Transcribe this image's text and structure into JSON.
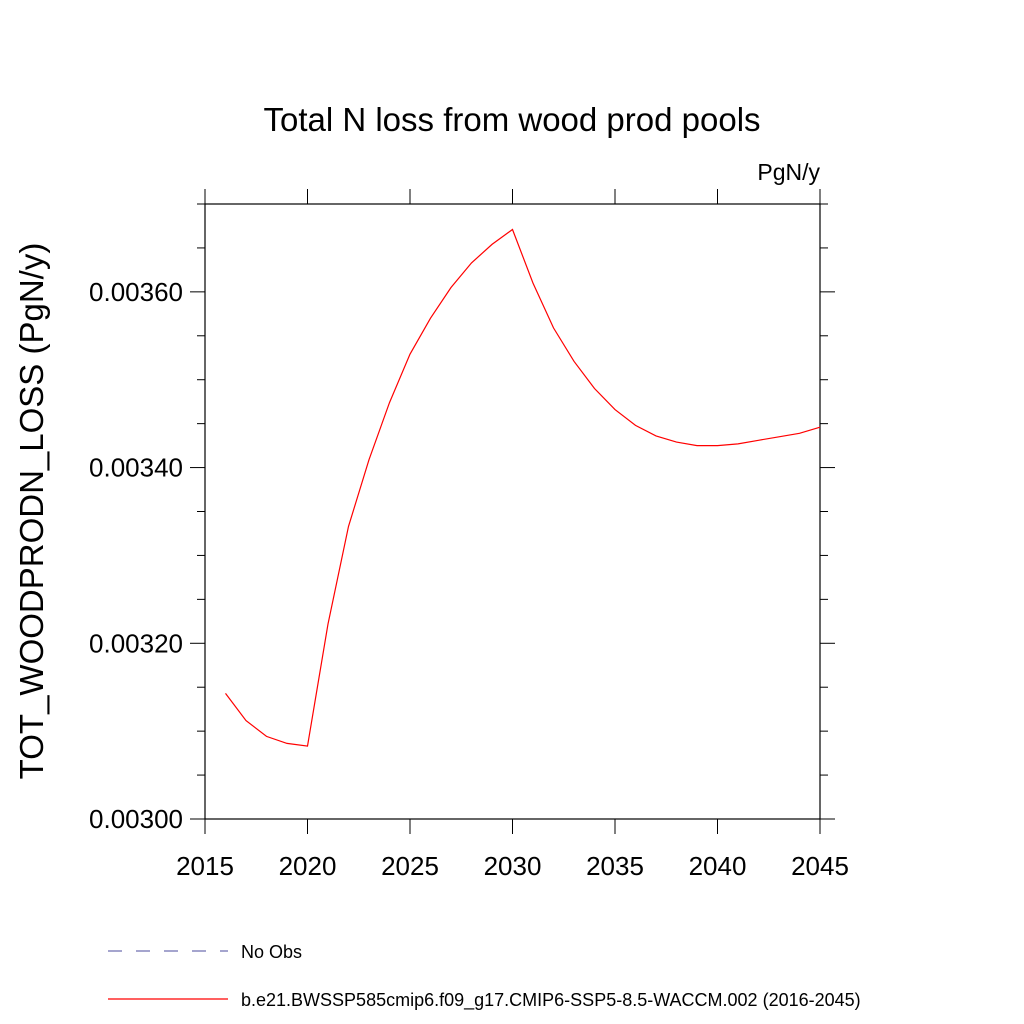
{
  "chart_data": {
    "type": "line",
    "title": "Total N loss from wood prod pools",
    "units_label": "PgN/y",
    "ylabel": "TOT_WOODPRODN_LOSS  (PgN/y)",
    "xlabel": "",
    "xlim": [
      2015,
      2045
    ],
    "ylim": [
      0.003,
      0.0037
    ],
    "x_ticks": [
      "2015",
      "2020",
      "2025",
      "2030",
      "2035",
      "2040",
      "2045"
    ],
    "y_ticks": [
      "0.00300",
      "0.00320",
      "0.00340",
      "0.00360"
    ],
    "grid": false,
    "legend_position": "bottom-left",
    "series": [
      {
        "name": "b.e21.BWSSP585cmip6.f09_g17.CMIP6-SSP5-8.5-WACCM.002 (2016-2045)",
        "color": "#ff0000",
        "style": "solid",
        "x": [
          2016,
          2017,
          2018,
          2019,
          2020,
          2021,
          2022,
          2023,
          2024,
          2025,
          2026,
          2027,
          2028,
          2029,
          2030,
          2031,
          2032,
          2033,
          2034,
          2035,
          2036,
          2037,
          2038,
          2039,
          2040,
          2041,
          2042,
          2043,
          2044,
          2045
        ],
        "values": [
          0.003143,
          0.003112,
          0.003094,
          0.003086,
          0.003083,
          0.003222,
          0.003333,
          0.003409,
          0.003474,
          0.003529,
          0.00357,
          0.003605,
          0.003633,
          0.003654,
          0.003671,
          0.00361,
          0.003559,
          0.003521,
          0.00349,
          0.003466,
          0.003448,
          0.003436,
          0.003429,
          0.003425,
          0.003425,
          0.003427,
          0.003431,
          0.003435,
          0.003439,
          0.003446
        ]
      },
      {
        "name": "No Obs",
        "color": "#6f6fb0",
        "style": "dashed",
        "x": [],
        "values": []
      }
    ]
  }
}
